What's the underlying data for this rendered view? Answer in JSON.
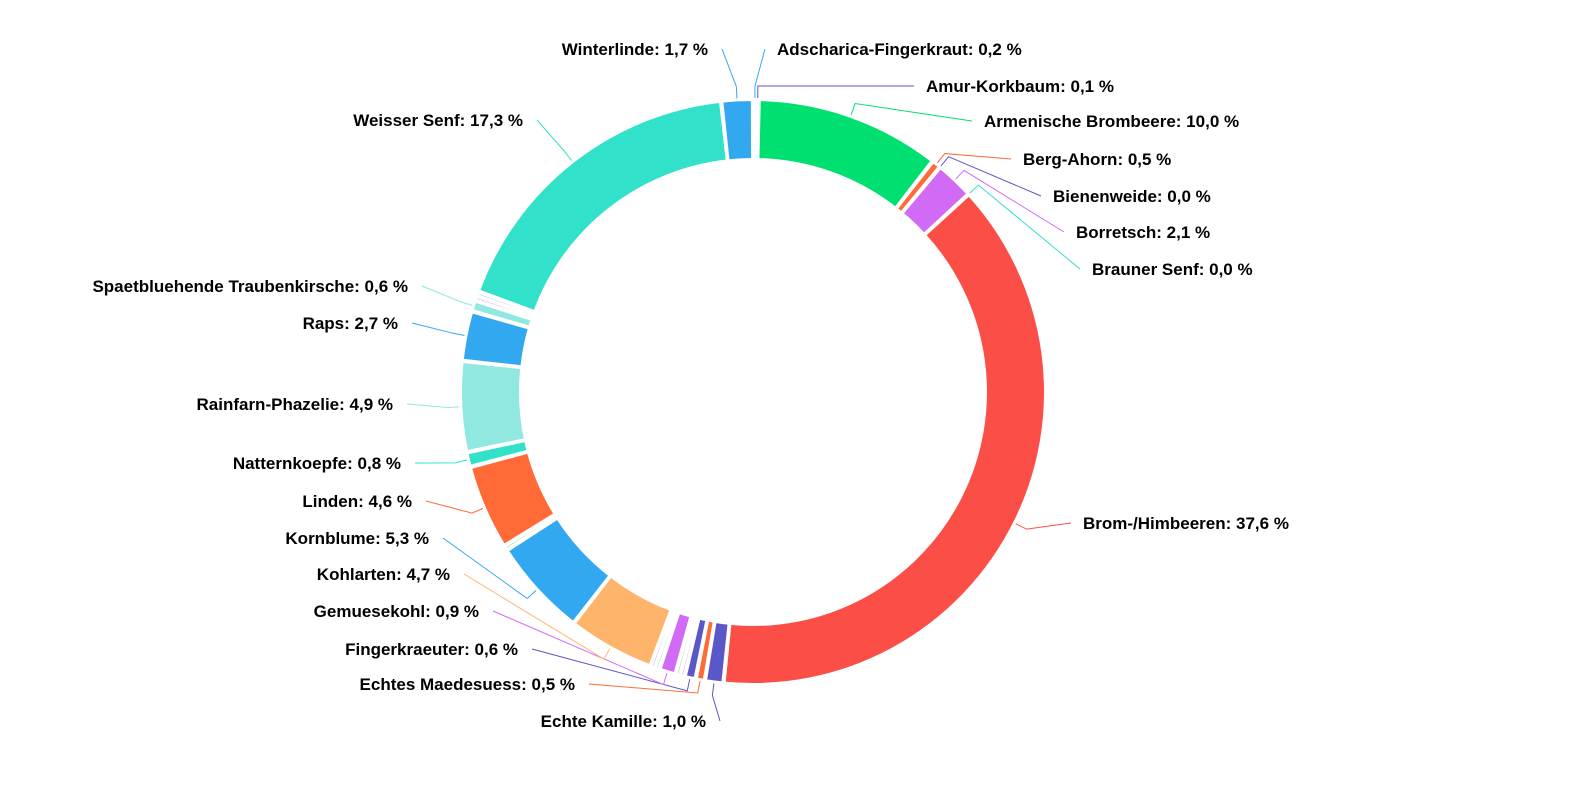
{
  "chart_data": {
    "type": "pie",
    "variant": "donut",
    "title": "",
    "unit": "%",
    "slices": [
      {
        "name": "Adscharica-Fingerkraut",
        "value": 0.2,
        "label": "Adscharica-Fingerkraut: 0,2 %",
        "color": "#32a8f0"
      },
      {
        "name": "Amur-Korkbaum",
        "value": 0.1,
        "label": "Amur-Korkbaum: 0,1 %",
        "color": "#5a57c8"
      },
      {
        "name": "Armenische Brombeere",
        "value": 10.0,
        "label": "Armenische Brombeere: 10,0 %",
        "color": "#00e070"
      },
      {
        "name": "Berg-Ahorn",
        "value": 0.5,
        "label": "Berg-Ahorn: 0,5 %",
        "color": "#ff6a36"
      },
      {
        "name": "Bienenweide",
        "value": 0.0,
        "label": "Bienenweide: 0,0 %",
        "color": "#5a57c8"
      },
      {
        "name": "Borretsch",
        "value": 2.1,
        "label": "Borretsch: 2,1 %",
        "color": "#d16bf5"
      },
      {
        "name": "Brauner Senf",
        "value": 0.0,
        "label": "Brauner Senf: 0,0 %",
        "color": "#31e1c9"
      },
      {
        "name": "Brom-/Himbeeren",
        "value": 37.6,
        "label": "Brom-/Himbeeren: 37,6 %",
        "color": "#fa4e46"
      },
      {
        "name": "Echte Kamille",
        "value": 1.0,
        "label": "Echte Kamille: 1,0 %",
        "color": "#5a57c8"
      },
      {
        "name": "Echtes Maedesuess",
        "value": 0.5,
        "label": "Echtes Maedesuess: 0,5 %",
        "color": "#ff6a36"
      },
      {
        "name": "Fingerkraeuter",
        "value": 0.6,
        "label": "Fingerkraeuter: 0,6 %",
        "color": "#5a57c8"
      },
      {
        "name": "Gemuesekohl",
        "value": 0.9,
        "label": "Gemuesekohl: 0,9 %",
        "color": "#d16bf5"
      },
      {
        "name": "Kohlarten",
        "value": 4.7,
        "label": "Kohlarten: 4,7 %",
        "color": "#ffb46b"
      },
      {
        "name": "Kornblume",
        "value": 5.3,
        "label": "Kornblume: 5,3 %",
        "color": "#32a8f0"
      },
      {
        "name": "Linden",
        "value": 4.6,
        "label": "Linden: 4,6 %",
        "color": "#ff6a36"
      },
      {
        "name": "Natternkoepfe",
        "value": 0.8,
        "label": "Natternkoepfe: 0,8 %",
        "color": "#31e1c9"
      },
      {
        "name": "Rainfarn-Phazelie",
        "value": 4.9,
        "label": "Rainfarn-Phazelie: 4,9 %",
        "color": "#90e8e0"
      },
      {
        "name": "Raps",
        "value": 2.7,
        "label": "Raps: 2,7 %",
        "color": "#32a8f0"
      },
      {
        "name": "Spaetbluehende Traubenkirsche",
        "value": 0.6,
        "label": "Spaetbluehende Traubenkirsche: 0,6 %",
        "color": "#90e8e0"
      },
      {
        "name": "Weisser Senf",
        "value": 17.3,
        "label": "Weisser Senf: 17,3 %",
        "color": "#31e1c9"
      },
      {
        "name": "Winterlinde",
        "value": 1.7,
        "label": "Winterlinde: 1,7 %",
        "color": "#32a8f0"
      }
    ],
    "minor_unlabeled_slices": [
      {
        "color": "#d16bf5",
        "between": [
          "Fingerkraeuter",
          "Gemuesekohl"
        ]
      },
      {
        "color": "#00e070",
        "between": [
          "Fingerkraeuter",
          "Gemuesekohl"
        ]
      },
      {
        "color": "#31e1c9",
        "between": [
          "Gemuesekohl",
          "Kohlarten"
        ]
      },
      {
        "color": "#d16bf5",
        "between": [
          "Gemuesekohl",
          "Kohlarten"
        ]
      },
      {
        "color": "#00e070",
        "between": [
          "Kornblume",
          "Linden"
        ]
      },
      {
        "color": "#d16bf5",
        "between": [
          "Spaetbluehende Traubenkirsche",
          "Weisser Senf"
        ]
      },
      {
        "color": "#32a8f0",
        "between": [
          "Spaetbluehende Traubenkirsche",
          "Weisser Senf"
        ]
      }
    ],
    "legend": "none",
    "data_labels": "outside-with-leader-lines"
  }
}
